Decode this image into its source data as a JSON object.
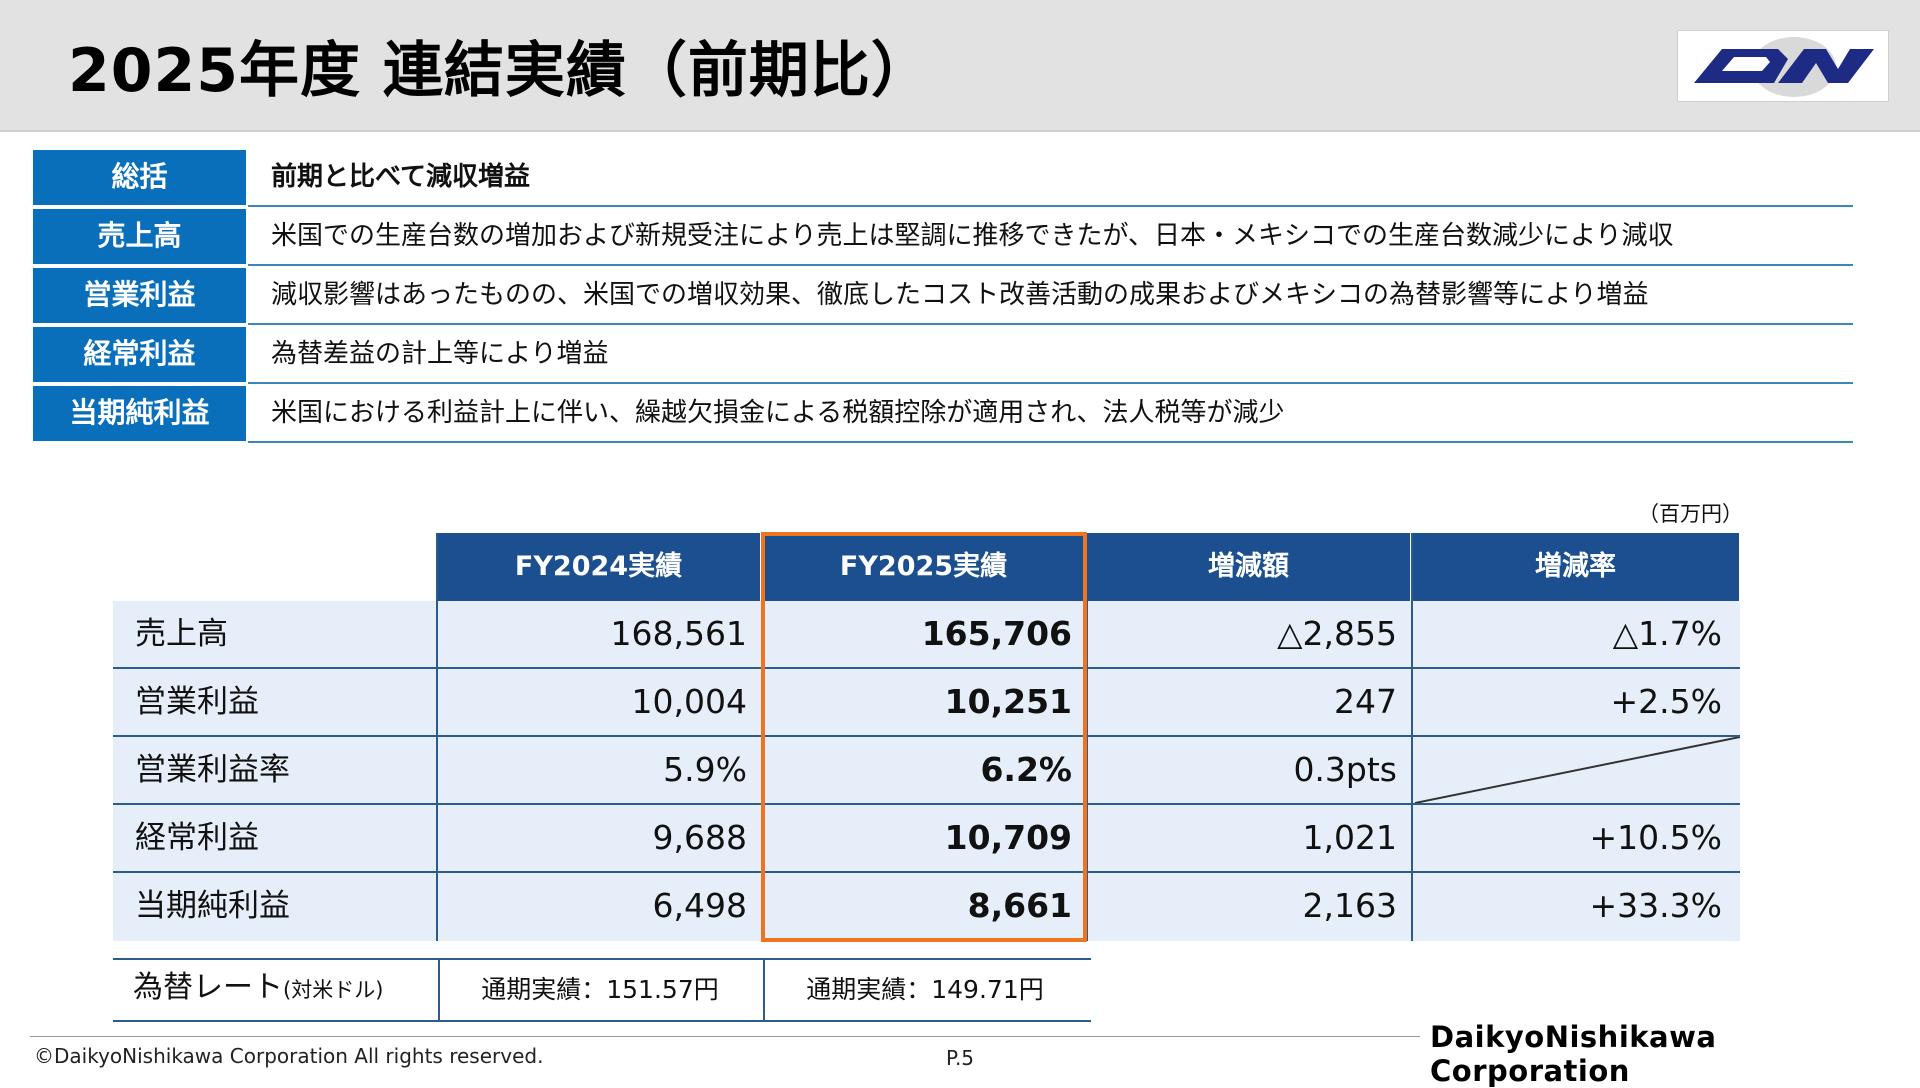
{
  "header": {
    "title": "2025年度 連結実績（前期比）",
    "logo_text": "DN"
  },
  "summary": {
    "rows": [
      {
        "label": "総括",
        "text": "前期と比べて減収増益"
      },
      {
        "label": "売上高",
        "text": "米国での生産台数の増加および新規受注により売上は堅調に推移できたが、日本・メキシコでの生産台数減少により減収"
      },
      {
        "label": "営業利益",
        "text": "減収影響はあったものの、米国での増収効果、徹底したコスト改善活動の成果およびメキシコの為替影響等により増益"
      },
      {
        "label": "経常利益",
        "text": "為替差益の計上等により増益"
      },
      {
        "label": "当期純利益",
        "text": "米国における利益計上に伴い、繰越欠損金による税額控除が適用され、法人税等が減少"
      }
    ]
  },
  "results": {
    "unit": "（百万円）",
    "headers": [
      "FY2024実績",
      "FY2025実績",
      "増減額",
      "増減率"
    ],
    "rows": [
      {
        "label": "売上高",
        "fy2024": "168,561",
        "fy2025": "165,706",
        "diff": "△2,855",
        "rate": "△1.7%"
      },
      {
        "label": "営業利益",
        "fy2024": "10,004",
        "fy2025": "10,251",
        "diff": "247",
        "rate": "+2.5%"
      },
      {
        "label": "営業利益率",
        "fy2024": "5.9%",
        "fy2025": "6.2%",
        "diff": "0.3pts",
        "rate": ""
      },
      {
        "label": "経常利益",
        "fy2024": "9,688",
        "fy2025": "10,709",
        "diff": "1,021",
        "rate": "+10.5%"
      },
      {
        "label": "当期純利益",
        "fy2024": "6,498",
        "fy2025": "8,661",
        "diff": "2,163",
        "rate": "+33.3%"
      }
    ]
  },
  "fx": {
    "label": "為替レート",
    "label_note": "(対米ドル)",
    "fy2024": "通期実績：151.57円",
    "fy2025": "通期実績：149.71円"
  },
  "footer": {
    "copyright": "©DaikyoNishikawa Corporation All rights reserved.",
    "page": "P.5",
    "company": "DaikyoNishikawa Corporation"
  },
  "colors": {
    "summary_label_bg": "#0a6fba",
    "table_header_bg": "#1b4f8f",
    "table_row_bg": "#e6eff9",
    "highlight_border": "#ee7420",
    "logo_navy": "#1d2b84"
  }
}
